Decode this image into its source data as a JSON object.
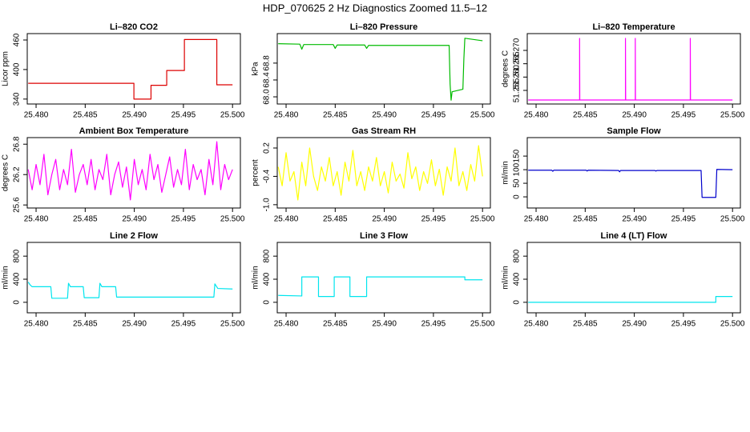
{
  "title": "HDP_070625  2 Hz Diagnostics Zoomed 11.5–12",
  "chart_data": [
    {
      "type": "line",
      "title": "Li–820 CO2",
      "y_label": "Licor ppm",
      "color": "#dd0000",
      "x": [
        25.4792,
        25.48996,
        25.48996,
        25.4917,
        25.4917,
        25.4933,
        25.4933,
        25.4951,
        25.4951,
        25.4984,
        25.4984,
        25.5
      ],
      "values": [
        372,
        372,
        340,
        340,
        368,
        368,
        398,
        398,
        461,
        461,
        369,
        369
      ],
      "xlim": [
        25.4791,
        25.5008
      ],
      "xticks": [
        {
          "value": 25.48,
          "label": "25.480"
        },
        25.485,
        {
          "value": 25.49,
          "label": "25.490"
        },
        25.495,
        {
          "value": 25.5,
          "label": "25.500"
        }
      ],
      "ylim": [
        330,
        473
      ],
      "yticks": [
        340,
        400,
        460
      ]
    },
    {
      "type": "line",
      "title": "Li–820 Pressure",
      "y_label": "kPa",
      "color": "#00bb00",
      "x": [
        25.4792,
        25.4814,
        25.4816,
        25.4818,
        25.4848,
        25.485,
        25.4852,
        25.488,
        25.4882,
        25.4884,
        25.4966,
        25.4967,
        25.4968,
        25.4969,
        25.498,
        25.4981,
        25.4982,
        25.5
      ],
      "values": [
        69.26,
        69.25,
        69.13,
        69.24,
        69.24,
        69.15,
        69.23,
        69.23,
        69.15,
        69.22,
        69.22,
        68.3,
        67.92,
        68.12,
        68.18,
        68.9,
        69.39,
        69.33
      ],
      "xlim": [
        25.4791,
        25.5008
      ],
      "xticks": [
        {
          "value": 25.48,
          "label": "25.480"
        },
        25.485,
        {
          "value": 25.49,
          "label": "25.490"
        },
        25.495,
        {
          "value": 25.5,
          "label": "25.500"
        }
      ],
      "ylim": [
        67.83,
        69.5
      ],
      "yticks": [
        {
          "value": 68,
          "label": "68.0"
        },
        68.4,
        68.8
      ]
    },
    {
      "type": "line",
      "title": "Li–820 Temperature",
      "y_label": "degrees C",
      "color": "#ff00ff",
      "x": [
        25.4792,
        25.48443,
        25.48443,
        25.48445,
        25.4891,
        25.4891,
        25.48912,
        25.4901,
        25.4901,
        25.49012,
        25.4957,
        25.4957,
        25.49572,
        25.5
      ],
      "values": [
        51.2514,
        51.2514,
        51.2745,
        51.2514,
        51.2514,
        51.2745,
        51.2514,
        51.2514,
        51.2745,
        51.2514,
        51.2514,
        51.2745,
        51.2514,
        51.2514
      ],
      "xlim": [
        25.4791,
        25.5008
      ],
      "xticks": [
        {
          "value": 25.48,
          "label": "25.480"
        },
        25.485,
        {
          "value": 25.49,
          "label": "25.490"
        },
        25.495,
        {
          "value": 25.5,
          "label": "25.500"
        }
      ],
      "ylim": [
        51.2499,
        51.2763
      ],
      "yticks": [
        51.255,
        {
          "value": 51.26,
          "label": "51.260"
        },
        51.265,
        {
          "value": 51.27,
          "label": "51.270"
        }
      ]
    },
    {
      "type": "line",
      "title": "Ambient Box Temperature",
      "y_label": "degrees C",
      "color": "#ff00ff",
      "x": [
        25.4792,
        25.4796,
        25.48,
        25.4804,
        25.4808,
        25.4812,
        25.4816,
        25.482,
        25.4824,
        25.4828,
        25.4832,
        25.4836,
        25.484,
        25.4844,
        25.4848,
        25.4852,
        25.4856,
        25.486,
        25.4864,
        25.4868,
        25.4872,
        25.4876,
        25.488,
        25.4884,
        25.4888,
        25.4892,
        25.4896,
        25.49,
        25.4904,
        25.4908,
        25.4912,
        25.4916,
        25.492,
        25.4924,
        25.4928,
        25.4932,
        25.4936,
        25.494,
        25.4944,
        25.4948,
        25.4952,
        25.4956,
        25.496,
        25.4964,
        25.4968,
        25.4972,
        25.4976,
        25.498,
        25.4984,
        25.4988,
        25.4992,
        25.4996,
        25.5
      ],
      "values": [
        26.3,
        25.9,
        26.4,
        26.0,
        26.6,
        25.8,
        26.2,
        26.5,
        25.9,
        26.3,
        26.0,
        26.7,
        25.85,
        26.2,
        26.4,
        26.0,
        26.5,
        25.9,
        26.3,
        26.1,
        26.6,
        25.8,
        26.2,
        26.45,
        25.95,
        26.35,
        25.7,
        26.5,
        26.0,
        26.3,
        25.9,
        26.6,
        26.1,
        26.4,
        25.85,
        26.2,
        26.55,
        25.95,
        26.3,
        26.0,
        26.7,
        25.9,
        26.4,
        26.1,
        26.3,
        25.8,
        26.5,
        26.0,
        26.85,
        25.9,
        26.4,
        26.1,
        26.3
      ],
      "xlim": [
        25.4791,
        25.5008
      ],
      "xticks": [
        {
          "value": 25.48,
          "label": "25.480"
        },
        25.485,
        {
          "value": 25.49,
          "label": "25.490"
        },
        25.495,
        {
          "value": 25.5,
          "label": "25.500"
        }
      ],
      "ylim": [
        25.54,
        26.93
      ],
      "yticks": [
        25.6,
        26.2,
        26.8
      ]
    },
    {
      "type": "line",
      "title": "Gas Stream RH",
      "y_label": "percent",
      "color": "#ffff00",
      "x": [
        25.4792,
        25.4796,
        25.48,
        25.4804,
        25.4808,
        25.4812,
        25.4816,
        25.482,
        25.4824,
        25.4828,
        25.4832,
        25.4836,
        25.484,
        25.4844,
        25.4848,
        25.4852,
        25.4856,
        25.486,
        25.4864,
        25.4868,
        25.4872,
        25.4876,
        25.488,
        25.4884,
        25.4888,
        25.4892,
        25.4896,
        25.49,
        25.4904,
        25.4908,
        25.4912,
        25.4916,
        25.492,
        25.4924,
        25.4928,
        25.4932,
        25.4936,
        25.494,
        25.4944,
        25.4948,
        25.4952,
        25.4956,
        25.496,
        25.4964,
        25.4968,
        25.4972,
        25.4976,
        25.498,
        25.4984,
        25.4988,
        25.4992,
        25.4996,
        25.5
      ],
      "values": [
        -0.2,
        -0.6,
        0.1,
        -0.5,
        -0.3,
        -0.9,
        -0.1,
        -0.6,
        0.2,
        -0.4,
        -0.7,
        -0.2,
        -0.5,
        0.0,
        -0.6,
        -0.3,
        -0.8,
        -0.1,
        -0.5,
        0.15,
        -0.6,
        -0.3,
        -0.7,
        -0.2,
        -0.5,
        0.0,
        -0.6,
        -0.3,
        -0.75,
        -0.1,
        -0.5,
        -0.35,
        -0.65,
        0.1,
        -0.45,
        -0.2,
        -0.7,
        -0.3,
        -0.55,
        -0.05,
        -0.6,
        -0.25,
        -0.8,
        -0.2,
        -0.5,
        0.2,
        -0.6,
        -0.3,
        -0.7,
        -0.15,
        -0.5,
        0.25,
        -0.4
      ],
      "xlim": [
        25.4791,
        25.5008
      ],
      "xticks": [
        {
          "value": 25.48,
          "label": "25.480"
        },
        25.485,
        {
          "value": 25.49,
          "label": "25.490"
        },
        25.495,
        {
          "value": 25.5,
          "label": "25.500"
        }
      ],
      "ylim": [
        -1.07,
        0.42
      ],
      "yticks": [
        {
          "value": -1,
          "label": "-1.0"
        },
        -0.4,
        0.2
      ]
    },
    {
      "type": "line",
      "title": "Sample Flow",
      "y_label": "ml/min",
      "color": "#0000cc",
      "x": [
        25.4792,
        25.4816,
        25.4817,
        25.4818,
        25.4851,
        25.4852,
        25.4853,
        25.4884,
        25.4885,
        25.4886,
        25.4921,
        25.4922,
        25.4923,
        25.4968,
        25.4969,
        25.4983,
        25.4984,
        25.5
      ],
      "values": [
        98,
        98,
        94,
        98,
        98,
        95,
        98,
        97,
        92,
        97,
        97,
        95,
        97,
        97,
        -2,
        -2,
        101,
        100
      ],
      "xlim": [
        25.4791,
        25.5008
      ],
      "xticks": [
        {
          "value": 25.48,
          "label": "25.480"
        },
        25.485,
        {
          "value": 25.49,
          "label": "25.490"
        },
        25.495,
        {
          "value": 25.5,
          "label": "25.500"
        }
      ],
      "ylim": [
        -41,
        218
      ],
      "yticks": [
        0,
        50,
        100,
        150
      ]
    },
    {
      "type": "line",
      "title": "Line 2 Flow",
      "y_label": "ml/min",
      "color": "#00e5ee",
      "x": [
        25.4792,
        25.4794,
        25.4796,
        25.4815,
        25.4816,
        25.4832,
        25.4833,
        25.4835,
        25.4848,
        25.4849,
        25.4864,
        25.4865,
        25.4867,
        25.4881,
        25.4882,
        25.4981,
        25.4982,
        25.4985,
        25.5
      ],
      "values": [
        350,
        300,
        270,
        270,
        70,
        70,
        330,
        270,
        270,
        80,
        80,
        330,
        270,
        270,
        90,
        90,
        320,
        240,
        230
      ],
      "xlim": [
        25.4791,
        25.5008
      ],
      "xticks": [
        {
          "value": 25.48,
          "label": "25.480"
        },
        25.485,
        {
          "value": 25.49,
          "label": "25.490"
        },
        25.495,
        {
          "value": 25.5,
          "label": "25.500"
        }
      ],
      "ylim": [
        -182,
        1038
      ],
      "yticks": [
        0,
        400,
        800
      ]
    },
    {
      "type": "line",
      "title": "Line 3 Flow",
      "y_label": "ml/min",
      "color": "#00e5ee",
      "x": [
        25.4792,
        25.4816,
        25.4816,
        25.4833,
        25.4833,
        25.4849,
        25.4849,
        25.4865,
        25.4865,
        25.4882,
        25.4882,
        25.4982,
        25.4982,
        25.5
      ],
      "values": [
        120,
        110,
        440,
        440,
        100,
        100,
        440,
        440,
        100,
        100,
        440,
        440,
        390,
        390
      ],
      "xlim": [
        25.4791,
        25.5008
      ],
      "xticks": [
        {
          "value": 25.48,
          "label": "25.480"
        },
        25.485,
        {
          "value": 25.49,
          "label": "25.490"
        },
        25.495,
        {
          "value": 25.5,
          "label": "25.500"
        }
      ],
      "ylim": [
        -182,
        1038
      ],
      "yticks": [
        0,
        400,
        800
      ]
    },
    {
      "type": "line",
      "title": "Line 4 (LT) Flow",
      "y_label": "ml/min",
      "color": "#00e5ee",
      "x": [
        25.4792,
        25.4983,
        25.4983,
        25.5
      ],
      "values": [
        0,
        0,
        100,
        100
      ],
      "xlim": [
        25.4791,
        25.5008
      ],
      "xticks": [
        {
          "value": 25.48,
          "label": "25.480"
        },
        25.485,
        {
          "value": 25.49,
          "label": "25.490"
        },
        25.495,
        {
          "value": 25.5,
          "label": "25.500"
        }
      ],
      "ylim": [
        -182,
        1038
      ],
      "yticks": [
        0,
        400,
        800
      ]
    }
  ]
}
